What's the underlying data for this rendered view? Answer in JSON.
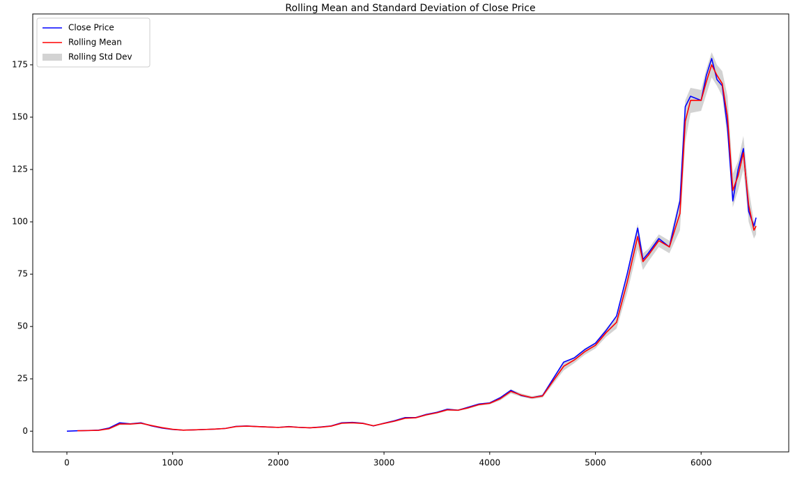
{
  "chart_data": {
    "type": "line",
    "title": "Rolling Mean and Standard Deviation of Close Price",
    "x": [
      0,
      100,
      200,
      300,
      400,
      500,
      600,
      700,
      800,
      900,
      1000,
      1100,
      1200,
      1300,
      1400,
      1500,
      1600,
      1700,
      1800,
      1900,
      2000,
      2100,
      2200,
      2300,
      2400,
      2500,
      2600,
      2700,
      2800,
      2900,
      3000,
      3100,
      3200,
      3300,
      3400,
      3500,
      3600,
      3700,
      3800,
      3900,
      4000,
      4100,
      4200,
      4300,
      4400,
      4500,
      4600,
      4700,
      4800,
      4900,
      5000,
      5100,
      5200,
      5300,
      5400,
      5450,
      5500,
      5600,
      5700,
      5800,
      5850,
      5900,
      6000,
      6050,
      6100,
      6150,
      6200,
      6250,
      6300,
      6350,
      6400,
      6450,
      6500,
      6520
    ],
    "series": [
      {
        "name": "Close Price",
        "color": "#0000ff",
        "values": [
          0,
          0.2,
          0.3,
          0.5,
          1.5,
          4,
          3.5,
          4,
          2.5,
          1.5,
          0.8,
          0.5,
          0.6,
          0.8,
          1,
          1.3,
          2.3,
          2.5,
          2.2,
          2,
          1.8,
          2.2,
          1.8,
          1.6,
          2,
          2.5,
          4,
          4.2,
          3.8,
          2.5,
          3.8,
          5,
          6.5,
          6.5,
          8,
          9,
          10.5,
          10,
          11.5,
          13,
          13.5,
          16,
          19.5,
          17,
          16,
          17,
          25,
          33,
          35,
          39,
          42,
          48,
          55,
          75,
          97,
          82,
          85,
          92,
          88,
          110,
          155,
          160,
          158,
          170,
          178,
          168,
          165,
          145,
          110,
          125,
          135,
          105,
          98,
          102
        ]
      },
      {
        "name": "Rolling Mean",
        "color": "#ff0000",
        "values": [
          null,
          0.2,
          0.3,
          0.4,
          1.2,
          3.5,
          3.4,
          3.8,
          2.7,
          1.7,
          0.9,
          0.5,
          0.6,
          0.8,
          1,
          1.3,
          2.2,
          2.4,
          2.2,
          2,
          1.8,
          2.1,
          1.8,
          1.6,
          1.9,
          2.4,
          3.8,
          4,
          3.7,
          2.6,
          3.7,
          4.8,
          6.2,
          6.4,
          7.8,
          8.8,
          10.2,
          10,
          11.2,
          12.7,
          13.3,
          15.5,
          19,
          17.2,
          16,
          16.8,
          24,
          31,
          34,
          38,
          41,
          47,
          52,
          71,
          93,
          81,
          84,
          91,
          88,
          104,
          148,
          158,
          158,
          167,
          175,
          170,
          166,
          150,
          115,
          122,
          133,
          108,
          96,
          98
        ]
      },
      {
        "name": "Rolling Std Dev",
        "color": "#d3d3d3",
        "values": [
          null,
          0.05,
          0.05,
          0.1,
          0.4,
          0.6,
          0.4,
          0.4,
          0.3,
          0.2,
          0.1,
          0.05,
          0.05,
          0.05,
          0.1,
          0.1,
          0.2,
          0.2,
          0.1,
          0.1,
          0.1,
          0.1,
          0.1,
          0.1,
          0.1,
          0.2,
          0.4,
          0.3,
          0.3,
          0.3,
          0.3,
          0.4,
          0.4,
          0.3,
          0.4,
          0.4,
          0.5,
          0.4,
          0.5,
          0.5,
          0.5,
          0.8,
          1,
          0.8,
          0.7,
          0.8,
          1.5,
          2,
          1.5,
          1.5,
          1.5,
          2,
          3,
          5,
          6,
          4,
          3,
          3,
          3,
          8,
          10,
          6,
          5,
          6,
          6,
          5,
          6,
          10,
          8,
          7,
          8,
          8,
          4,
          4
        ]
      }
    ],
    "xlim": [
      -323,
      6829
    ],
    "ylim": [
      -9.9,
      199.3
    ],
    "xticks": [
      0,
      1000,
      2000,
      3000,
      4000,
      5000,
      6000
    ],
    "yticks": [
      0,
      25,
      50,
      75,
      100,
      125,
      150,
      175
    ],
    "legend": "upper left"
  }
}
